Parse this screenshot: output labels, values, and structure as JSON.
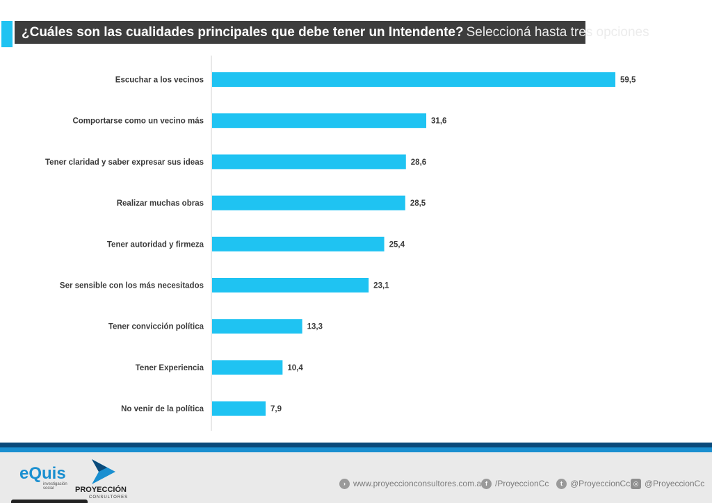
{
  "header": {
    "question": "¿Cuáles son las cualidades principales que debe tener un Intendente?",
    "instruction": "Seleccioná hasta tres opciones"
  },
  "chart_data": {
    "type": "bar",
    "orientation": "horizontal",
    "title": "¿Cuáles son las cualidades principales que debe tener un Intendente? Seleccioná hasta tres opciones",
    "xlabel": "",
    "ylabel": "",
    "categories": [
      "Escuchar a los vecinos",
      "Comportarse como un vecino más",
      "Tener claridad y saber expresar sus ideas",
      "Realizar muchas obras",
      "Tener autoridad y firmeza",
      "Ser sensible con los más necesitados",
      "Tener convicción política",
      "Tener Experiencia",
      "No venir de la política"
    ],
    "values": [
      59.5,
      31.6,
      28.6,
      28.5,
      25.4,
      23.1,
      13.3,
      10.4,
      7.9
    ],
    "value_labels": [
      "59,5",
      "31,6",
      "28,6",
      "28,5",
      "25,4",
      "23,1",
      "13,3",
      "10,4",
      "7,9"
    ],
    "xlim": [
      0,
      59.5
    ],
    "grid": false,
    "bar_color": "#1fc3f2"
  },
  "footer": {
    "equis_logo": "eQuis",
    "equis_tagline": "investigación social",
    "proyeccion_logo": "PROYECCIÓN",
    "proyeccion_sub": "CONSULTORES",
    "website": "www.proyeccionconsultores.com.ar",
    "facebook": "/ProyeccionCc",
    "twitter": "@ProyeccionCc",
    "instagram": "@ProyeccionCc"
  }
}
